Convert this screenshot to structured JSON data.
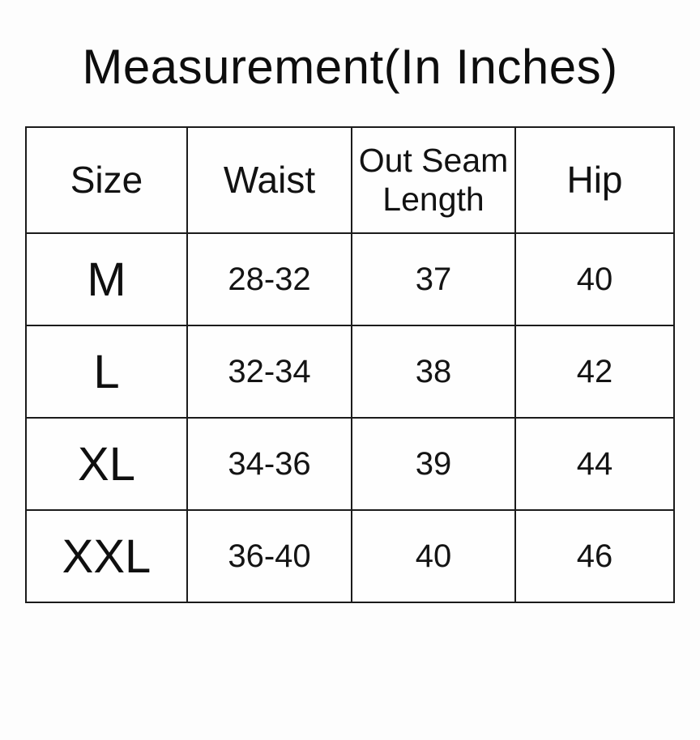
{
  "title": "Measurement(In Inches)",
  "chart_data": {
    "type": "table",
    "title": "Measurement(In Inches)",
    "columns": [
      "Size",
      "Waist",
      "Out Seam Length",
      "Hip"
    ],
    "rows": [
      [
        "M",
        "28-32",
        "37",
        "40"
      ],
      [
        "L",
        "32-34",
        "38",
        "42"
      ],
      [
        "XL",
        "34-36",
        "39",
        "44"
      ],
      [
        "XXL",
        "36-40",
        "40",
        "46"
      ]
    ],
    "units": "inches"
  },
  "colors": {
    "background": "#fdfdfd",
    "text": "#101010",
    "border": "#1b1b1b"
  }
}
